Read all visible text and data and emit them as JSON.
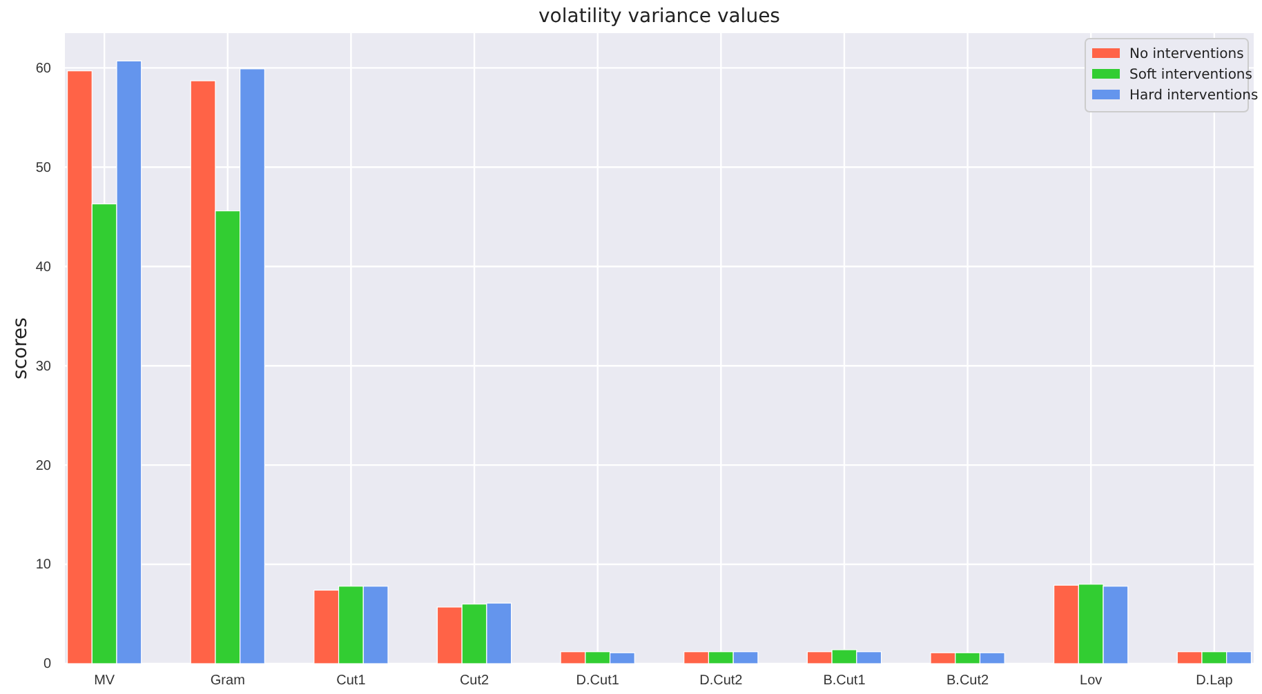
{
  "chart_data": {
    "type": "bar",
    "title": "volatility variance values",
    "ylabel": "scores",
    "categories": [
      "MV",
      "Gram",
      "Cut1",
      "Cut2",
      "D.Cut1",
      "D.Cut2",
      "B.Cut1",
      "B.Cut2",
      "Lov",
      "D.Lap"
    ],
    "series": [
      {
        "name": "No interventions",
        "color": "#ff6347",
        "values": [
          59.7,
          58.7,
          7.4,
          5.7,
          1.2,
          1.2,
          1.2,
          1.1,
          7.9,
          1.2
        ]
      },
      {
        "name": "Soft interventions",
        "color": "#32cd32",
        "values": [
          46.3,
          45.6,
          7.8,
          6.0,
          1.2,
          1.2,
          1.4,
          1.1,
          8.0,
          1.2
        ]
      },
      {
        "name": "Hard interventions",
        "color": "#6495ed",
        "values": [
          60.7,
          59.9,
          7.8,
          6.1,
          1.1,
          1.2,
          1.2,
          1.1,
          7.8,
          1.2
        ]
      }
    ],
    "ylim": [
      0,
      63.5
    ],
    "yticks": [
      0,
      10,
      20,
      30,
      40,
      50,
      60
    ],
    "grid": true,
    "legend": "top right"
  }
}
